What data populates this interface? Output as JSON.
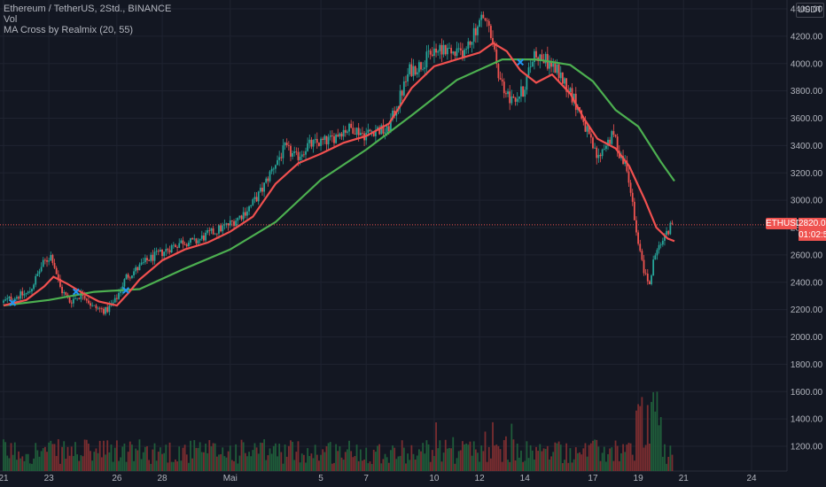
{
  "chart_data": {
    "type": "candlestick",
    "legend": {
      "symbol": "Ethereum / TetherUS, 2Std., BINANCE",
      "volume": "Vol",
      "indicator": "MA Cross by Realmix (20, 55)"
    },
    "unit": "USDT",
    "ylim": [
      1080,
      4480
    ],
    "yticks": [
      1200,
      1400,
      1600,
      1800,
      2000,
      2200,
      2400,
      2600,
      2800,
      3000,
      3200,
      3400,
      3600,
      3800,
      4000,
      4200,
      4400
    ],
    "xlim": [
      20.8,
      25.3
    ],
    "x_days_note": "days from 21 April",
    "xticks": [
      {
        "d": 0,
        "label": "21"
      },
      {
        "d": 2,
        "label": "23"
      },
      {
        "d": 5,
        "label": "26"
      },
      {
        "d": 7,
        "label": "28"
      },
      {
        "d": 10,
        "label": "Mai"
      },
      {
        "d": 14,
        "label": "5"
      },
      {
        "d": 16,
        "label": "7"
      },
      {
        "d": 19,
        "label": "10"
      },
      {
        "d": 21,
        "label": "12"
      },
      {
        "d": 23,
        "label": "14"
      },
      {
        "d": 26,
        "label": "17"
      },
      {
        "d": 28,
        "label": "19"
      },
      {
        "d": 30,
        "label": "21"
      },
      {
        "d": 33,
        "label": "24"
      }
    ],
    "price_anchors": [
      [
        0,
        2250
      ],
      [
        0.5,
        2290
      ],
      [
        1.2,
        2320
      ],
      [
        1.8,
        2530
      ],
      [
        2.2,
        2600
      ],
      [
        2.6,
        2350
      ],
      [
        3.0,
        2260
      ],
      [
        3.6,
        2320
      ],
      [
        4.0,
        2220
      ],
      [
        4.6,
        2190
      ],
      [
        5.0,
        2260
      ],
      [
        5.5,
        2440
      ],
      [
        6.0,
        2500
      ],
      [
        6.5,
        2570
      ],
      [
        7.0,
        2610
      ],
      [
        7.5,
        2660
      ],
      [
        8.0,
        2700
      ],
      [
        8.5,
        2690
      ],
      [
        9.0,
        2740
      ],
      [
        9.5,
        2780
      ],
      [
        10.0,
        2820
      ],
      [
        10.5,
        2880
      ],
      [
        11.0,
        2960
      ],
      [
        11.5,
        3080
      ],
      [
        12.0,
        3250
      ],
      [
        12.5,
        3380
      ],
      [
        13.0,
        3310
      ],
      [
        13.5,
        3400
      ],
      [
        14.0,
        3420
      ],
      [
        14.5,
        3440
      ],
      [
        15.0,
        3510
      ],
      [
        15.5,
        3530
      ],
      [
        16.0,
        3480
      ],
      [
        16.5,
        3520
      ],
      [
        17.0,
        3500
      ],
      [
        17.5,
        3720
      ],
      [
        18.0,
        3950
      ],
      [
        18.5,
        3990
      ],
      [
        19.0,
        4080
      ],
      [
        19.5,
        4120
      ],
      [
        20.0,
        4060
      ],
      [
        20.5,
        4100
      ],
      [
        21.0,
        4280
      ],
      [
        21.3,
        4350
      ],
      [
        21.6,
        4180
      ],
      [
        22.0,
        3860
      ],
      [
        22.5,
        3720
      ],
      [
        23.0,
        3800
      ],
      [
        23.5,
        4080
      ],
      [
        24.0,
        4020
      ],
      [
        24.5,
        3950
      ],
      [
        25.0,
        3820
      ],
      [
        25.5,
        3650
      ],
      [
        26.0,
        3420
      ],
      [
        26.3,
        3300
      ],
      [
        26.6,
        3400
      ],
      [
        27.0,
        3480
      ],
      [
        27.3,
        3320
      ],
      [
        27.6,
        3250
      ],
      [
        28.0,
        2750
      ],
      [
        28.3,
        2500
      ],
      [
        28.6,
        2380
      ],
      [
        28.8,
        2600
      ],
      [
        29.2,
        2700
      ],
      [
        29.5,
        2820
      ]
    ],
    "ma_fast": {
      "label": "MA 20",
      "color": "#f0504f",
      "points": [
        [
          0,
          2230
        ],
        [
          1.0,
          2270
        ],
        [
          1.8,
          2370
        ],
        [
          2.2,
          2440
        ],
        [
          2.8,
          2390
        ],
        [
          3.5,
          2320
        ],
        [
          4.2,
          2260
        ],
        [
          5.0,
          2230
        ],
        [
          5.5,
          2320
        ],
        [
          6.0,
          2420
        ],
        [
          7.0,
          2560
        ],
        [
          8.0,
          2640
        ],
        [
          9.0,
          2690
        ],
        [
          10.0,
          2770
        ],
        [
          11.0,
          2880
        ],
        [
          12.0,
          3120
        ],
        [
          13.0,
          3270
        ],
        [
          14.0,
          3340
        ],
        [
          15.0,
          3420
        ],
        [
          16.0,
          3470
        ],
        [
          17.0,
          3560
        ],
        [
          18.0,
          3820
        ],
        [
          19.0,
          3980
        ],
        [
          20.0,
          4030
        ],
        [
          21.0,
          4080
        ],
        [
          21.6,
          4150
        ],
        [
          22.2,
          4090
        ],
        [
          22.8,
          3950
        ],
        [
          23.5,
          3860
        ],
        [
          24.2,
          3920
        ],
        [
          25.0,
          3780
        ],
        [
          25.6,
          3600
        ],
        [
          26.2,
          3450
        ],
        [
          27.0,
          3380
        ],
        [
          27.6,
          3250
        ],
        [
          28.3,
          3000
        ],
        [
          28.8,
          2800
        ],
        [
          29.3,
          2720
        ],
        [
          29.6,
          2700
        ]
      ]
    },
    "ma_slow": {
      "label": "MA 55",
      "color": "#4caf50",
      "points": [
        [
          0,
          2230
        ],
        [
          2.0,
          2270
        ],
        [
          4.0,
          2330
        ],
        [
          6.0,
          2350
        ],
        [
          8.0,
          2500
        ],
        [
          10.0,
          2640
        ],
        [
          12.0,
          2840
        ],
        [
          14.0,
          3150
        ],
        [
          16.0,
          3370
        ],
        [
          18.0,
          3620
        ],
        [
          20.0,
          3880
        ],
        [
          22.0,
          4030
        ],
        [
          23.5,
          4030
        ],
        [
          25.0,
          3990
        ],
        [
          26.0,
          3870
        ],
        [
          27.0,
          3660
        ],
        [
          28.0,
          3540
        ],
        [
          29.0,
          3280
        ],
        [
          29.6,
          3140
        ]
      ]
    },
    "crosses": [
      {
        "x": 0.4,
        "y": 2250
      },
      {
        "x": 3.2,
        "y": 2330
      },
      {
        "x": 5.4,
        "y": 2340
      },
      {
        "x": 22.8,
        "y": 4010
      }
    ],
    "last_price": {
      "symbol": "ETHUSDT",
      "value": 2820,
      "value_label": "2820.00",
      "countdown": "01:02:55",
      "color": "#ef5350"
    },
    "candle_colors": {
      "up": "#26a69a",
      "down": "#ef5350"
    },
    "volume_colors": {
      "up": "#1f5c3a",
      "down": "#7a2d30"
    }
  }
}
